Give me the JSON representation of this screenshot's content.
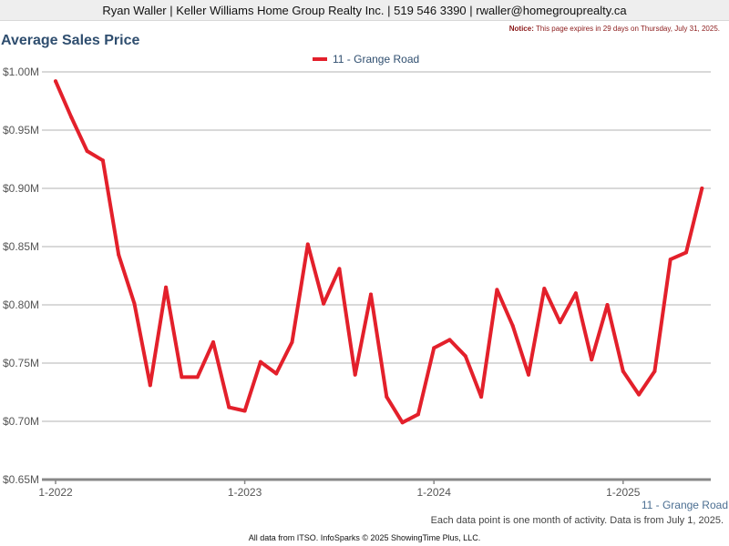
{
  "header": {
    "contact": "Ryan Waller | Keller Williams Home Group Realty Inc. | 519 546 3390 | rwaller@homegrouprealty.ca"
  },
  "notice": {
    "label": "Notice:",
    "text": "This page expires in 29 days on Thursday, July 31, 2025."
  },
  "footer": {
    "series_label": "11 - Grange Road",
    "note": "Each data point is one month of activity. Data is from July 1, 2025.",
    "credit": "All data from ITSO. InfoSparks © 2025 ShowingTime Plus, LLC."
  },
  "colors": {
    "series": "#e3202b",
    "title": "#2f4e6f",
    "grid": "#b3b3b3",
    "axis": "#888888"
  },
  "chart_data": {
    "type": "line",
    "title": "Average Sales Price",
    "legend_position": "top-center",
    "grid": true,
    "x_ticks": [
      "1-2022",
      "1-2023",
      "1-2024",
      "1-2025"
    ],
    "y_ticks": [
      "$0.65M",
      "$0.70M",
      "$0.75M",
      "$0.80M",
      "$0.85M",
      "$0.90M",
      "$0.95M",
      "$1.00M"
    ],
    "ylim": [
      0.65,
      1.0
    ],
    "x_start": "2022-01",
    "series": [
      {
        "name": "11 - Grange Road",
        "color": "#e3202b",
        "x": [
          "2022-01",
          "2022-02",
          "2022-03",
          "2022-04",
          "2022-05",
          "2022-06",
          "2022-07",
          "2022-08",
          "2022-09",
          "2022-10",
          "2022-11",
          "2022-12",
          "2023-01",
          "2023-02",
          "2023-03",
          "2023-04",
          "2023-05",
          "2023-06",
          "2023-07",
          "2023-08",
          "2023-09",
          "2023-10",
          "2023-11",
          "2023-12",
          "2024-01",
          "2024-02",
          "2024-03",
          "2024-04",
          "2024-05",
          "2024-06",
          "2024-07",
          "2024-08",
          "2024-09",
          "2024-10",
          "2024-11",
          "2024-12",
          "2025-01",
          "2025-02",
          "2025-03",
          "2025-04",
          "2025-05",
          "2025-06"
        ],
        "values": [
          0.992,
          0.961,
          0.932,
          0.924,
          0.843,
          0.801,
          0.731,
          0.815,
          0.738,
          0.738,
          0.768,
          0.712,
          0.709,
          0.751,
          0.741,
          0.768,
          0.852,
          0.801,
          0.831,
          0.74,
          0.809,
          0.721,
          0.699,
          0.706,
          0.763,
          0.77,
          0.756,
          0.721,
          0.813,
          0.782,
          0.74,
          0.814,
          0.785,
          0.81,
          0.753,
          0.8,
          0.743,
          0.723,
          0.743,
          0.839,
          0.845,
          0.9
        ]
      }
    ]
  }
}
